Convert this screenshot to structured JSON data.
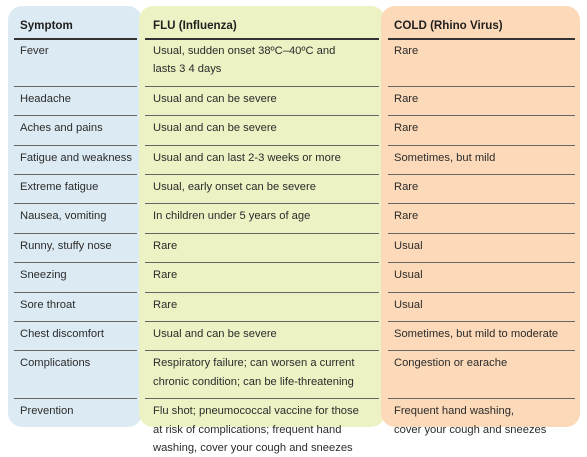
{
  "headers": [
    "Symptom",
    "FLU (Influenza)",
    "COLD (Rhino Virus)"
  ],
  "rows": [
    {
      "symptom": "Fever",
      "flu": [
        "Usual, sudden onset 38ºC–40ºC and",
        "lasts 3 4 days"
      ],
      "cold": [
        "Rare"
      ]
    },
    {
      "symptom": "Headache",
      "flu": [
        "Usual and can be severe"
      ],
      "cold": [
        "Rare"
      ]
    },
    {
      "symptom": "Aches and pains",
      "flu": [
        "Usual and can be severe"
      ],
      "cold": [
        "Rare"
      ]
    },
    {
      "symptom": "Fatigue and weakness",
      "flu": [
        "Usual and can last 2-3 weeks or more"
      ],
      "cold": [
        "Sometimes, but mild"
      ]
    },
    {
      "symptom": "Extreme fatigue",
      "flu": [
        "Usual, early onset can be severe"
      ],
      "cold": [
        "Rare"
      ]
    },
    {
      "symptom": "Nausea, vomiting",
      "flu": [
        "In children under 5 years of age"
      ],
      "cold": [
        "Rare"
      ]
    },
    {
      "symptom": "Runny, stuffy nose",
      "flu": [
        "Rare"
      ],
      "cold": [
        "Usual"
      ]
    },
    {
      "symptom": "Sneezing",
      "flu": [
        "Rare"
      ],
      "cold": [
        "Usual"
      ]
    },
    {
      "symptom": "Sore throat",
      "flu": [
        "Rare"
      ],
      "cold": [
        "Usual"
      ]
    },
    {
      "symptom": "Chest discomfort",
      "flu": [
        "Usual and can be severe"
      ],
      "cold": [
        "Sometimes, but mild to moderate"
      ]
    },
    {
      "symptom": "Complications",
      "flu": [
        "Respiratory failure; can worsen a current",
        "chronic condition; can be life-threatening"
      ],
      "cold": [
        "Congestion or earache"
      ]
    },
    {
      "symptom": "Prevention",
      "flu": [
        "Flu shot; pneumococcal vaccine for those",
        "at risk of complications; frequent hand",
        "washing, cover your cough and sneezes"
      ],
      "cold": [
        "Frequent hand washing,",
        "cover your cough and sneezes"
      ]
    }
  ],
  "colors": {
    "symptom_column": "#dcebf3",
    "flu_column": "#ecf2c3",
    "cold_column": "#fcd9b8",
    "rule": "#666666"
  }
}
